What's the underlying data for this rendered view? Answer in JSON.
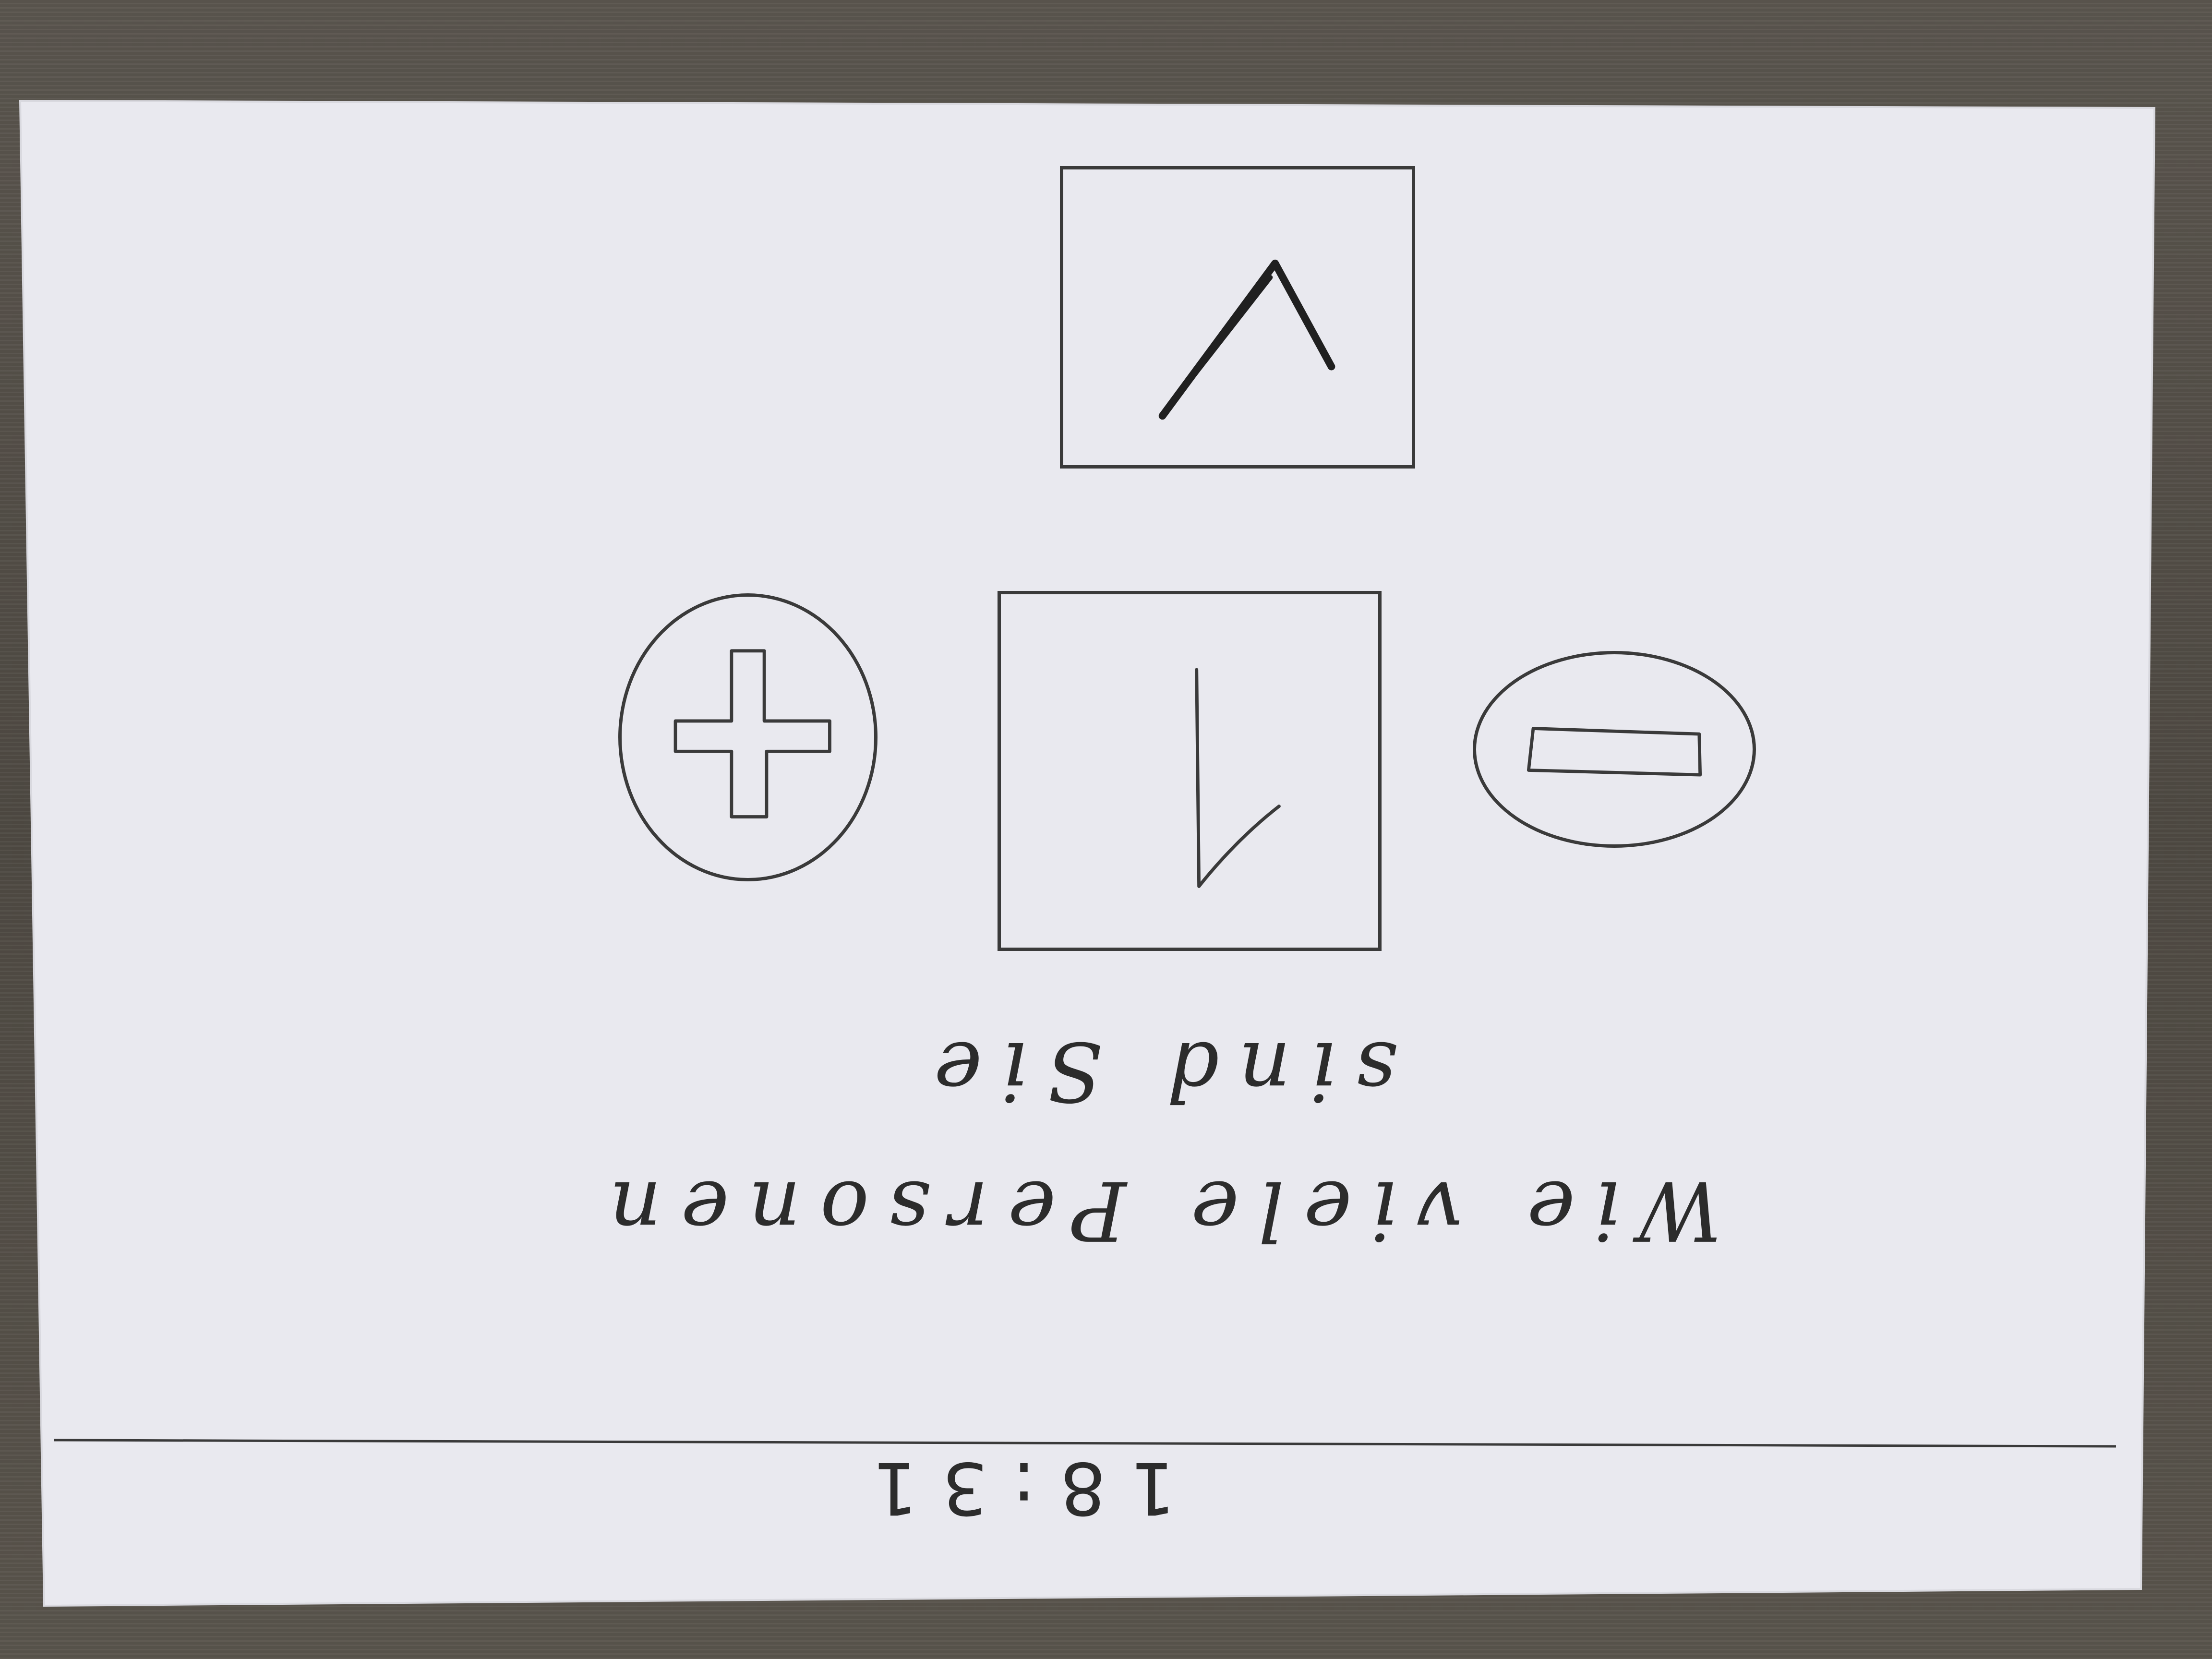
{
  "status_bar": {
    "time": "18:31"
  },
  "question": {
    "line1": "Wie viele Personen",
    "line2": "sind Sie"
  },
  "counter": {
    "value": "1"
  },
  "controls": {
    "decrement_icon": "minus-icon",
    "increment_icon": "plus-icon",
    "confirm_icon": "checkmark-icon"
  }
}
